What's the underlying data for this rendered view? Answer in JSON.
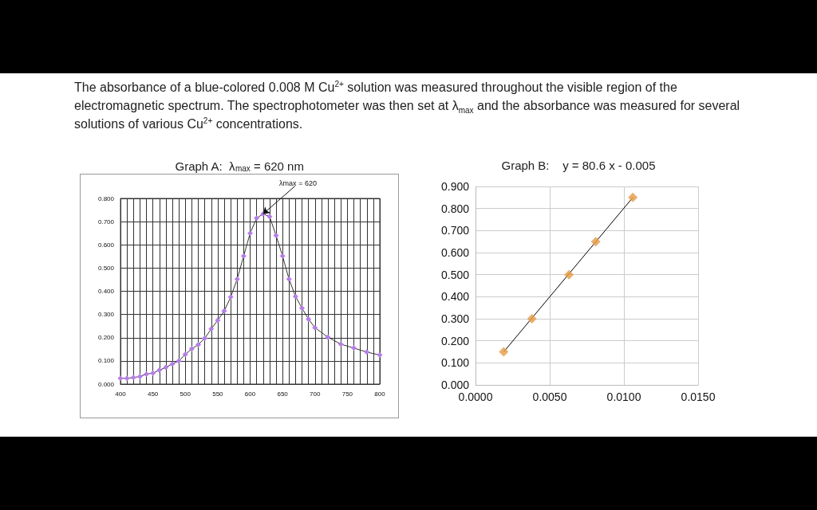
{
  "chart_data": [
    {
      "type": "line",
      "title": "Graph A:  λ$_{max}$ = 620 nm",
      "annotations": [
        "The absorbance of a blue-colored 0.008 M Cu$^{2+}$ solution was measured throughout the visible region of the electromagnetic spectrum.  The spectrophotometer was then set at λ$_{max}$ and the absorbance was measured for several solutions of various Cu$^{2+}$ concentrations.",
        {
          "text": "λmax = 620",
          "x": 620,
          "y": 0.733
        }
      ],
      "x": [
        400,
        410,
        420,
        430,
        440,
        450,
        460,
        470,
        480,
        490,
        500,
        510,
        520,
        530,
        540,
        550,
        560,
        570,
        580,
        590,
        600,
        610,
        620,
        630,
        640,
        650,
        660,
        670,
        680,
        690,
        700,
        720,
        740,
        760,
        780,
        800
      ],
      "series": [
        {
          "color": "#b57ee8",
          "values": [
            0.025,
            0.025,
            0.028,
            0.033,
            0.043,
            0.047,
            0.06,
            0.072,
            0.087,
            0.1,
            0.128,
            0.152,
            0.17,
            0.197,
            0.238,
            0.275,
            0.315,
            0.375,
            0.452,
            0.552,
            0.65,
            0.715,
            0.733,
            0.722,
            0.64,
            0.552,
            0.452,
            0.378,
            0.327,
            0.28,
            0.243,
            0.202,
            0.172,
            0.155,
            0.138,
            0.125
          ]
        }
      ],
      "marker": "diamond",
      "grid": true,
      "xlim": [
        400,
        800
      ],
      "xticks": [
        400,
        {
          "value": 410,
          "label": null
        },
        {
          "value": 420,
          "label": null
        },
        {
          "value": 430,
          "label": null
        },
        {
          "value": 440,
          "label": null
        },
        450,
        {
          "value": 460,
          "label": null
        },
        {
          "value": 470,
          "label": null
        },
        {
          "value": 480,
          "label": null
        },
        {
          "value": 490,
          "label": null
        },
        500,
        {
          "value": 510,
          "label": null
        },
        {
          "value": 520,
          "label": null
        },
        {
          "value": 530,
          "label": null
        },
        {
          "value": 540,
          "label": null
        },
        550,
        {
          "value": 560,
          "label": null
        },
        {
          "value": 570,
          "label": null
        },
        {
          "value": 580,
          "label": null
        },
        {
          "value": 590,
          "label": null
        },
        600,
        {
          "value": 610,
          "label": null
        },
        {
          "value": 620,
          "label": null
        },
        {
          "value": 630,
          "label": null
        },
        {
          "value": 640,
          "label": null
        },
        650,
        {
          "value": 660,
          "label": null
        },
        {
          "value": 670,
          "label": null
        },
        {
          "value": 680,
          "label": null
        },
        {
          "value": 690,
          "label": null
        },
        700,
        {
          "value": 710,
          "label": null
        },
        {
          "value": 720,
          "label": null
        },
        {
          "value": 730,
          "label": null
        },
        {
          "value": 740,
          "label": null
        },
        750,
        {
          "value": 760,
          "label": null
        },
        {
          "value": 770,
          "label": null
        },
        {
          "value": 780,
          "label": null
        },
        {
          "value": 790,
          "label": null
        },
        800
      ],
      "ylim": [
        0,
        0.8
      ],
      "yticks": [
        {
          "value": 0,
          "label": "0.000"
        },
        {
          "value": 0.1,
          "label": "0.100"
        },
        {
          "value": 0.2,
          "label": "0.200"
        },
        {
          "value": 0.3,
          "label": "0.300"
        },
        {
          "value": 0.4,
          "label": "0.400"
        },
        {
          "value": 0.5,
          "label": "0.500"
        },
        {
          "value": 0.6,
          "label": "0.600"
        },
        {
          "value": 0.7,
          "label": "0.700"
        },
        {
          "value": 0.8,
          "label": "0.800"
        }
      ]
    },
    {
      "type": "scatter",
      "title": "Graph B:    y = 80.6 x - 0.005",
      "series": [
        {
          "type": "scatter",
          "color": "#e69b45",
          "x": [
            0.0019,
            0.0038,
            0.0063,
            0.0081,
            0.0106
          ],
          "values": [
            0.15,
            0.3,
            0.5,
            0.65,
            0.85
          ]
        },
        {
          "type": "line",
          "color": "#000000",
          "marker": "none",
          "x": [
            0.0019,
            0.0106
          ],
          "values": [
            0.15,
            0.85
          ]
        }
      ],
      "marker": "diamond",
      "grid": true,
      "xlim": [
        0,
        0.015
      ],
      "xticks": [
        {
          "value": 0,
          "label": "0.0000"
        },
        {
          "value": 0.005,
          "label": "0.0050"
        },
        {
          "value": 0.01,
          "label": "0.0100"
        },
        {
          "value": 0.015,
          "label": "0.0150"
        }
      ],
      "ylim": [
        0,
        0.9
      ],
      "yticks": [
        {
          "value": 0,
          "label": "0.000"
        },
        {
          "value": 0.1,
          "label": "0.100"
        },
        {
          "value": 0.2,
          "label": "0.200"
        },
        {
          "value": 0.3,
          "label": "0.300"
        },
        {
          "value": 0.4,
          "label": "0.400"
        },
        {
          "value": 0.5,
          "label": "0.500"
        },
        {
          "value": 0.6,
          "label": "0.600"
        },
        {
          "value": 0.7,
          "label": "0.700"
        },
        {
          "value": 0.8,
          "label": "0.800"
        },
        {
          "value": 0.9,
          "label": "0.900"
        }
      ]
    }
  ]
}
